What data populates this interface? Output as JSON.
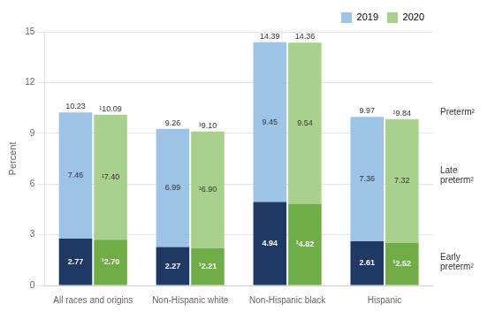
{
  "chart_data": {
    "type": "bar",
    "stacked": true,
    "categories": [
      "All races and origins",
      "Non-Hispanic white",
      "Non-Hispanic black",
      "Hispanic"
    ],
    "ylabel": "Percent",
    "ylim": [
      0,
      15
    ],
    "yticks": [
      0,
      3,
      6,
      9,
      12,
      15
    ],
    "grid": true,
    "legend": "upper right",
    "data_labels": true,
    "series": [
      {
        "name": "2019",
        "color": "#9dc3e6",
        "annotation": "Preterm²",
        "totals": [
          10.23,
          9.26,
          14.39,
          9.97
        ],
        "total_labels": [
          "10.23",
          "9.26",
          "14.39",
          "9.97"
        ],
        "segments": [
          {
            "color": "#1f3864",
            "annotation": "Early\npreterm²",
            "values": [
              2.77,
              2.27,
              4.94,
              2.61
            ],
            "value_labels": [
              "2.77",
              "2.27",
              "4.94",
              "2.61"
            ]
          },
          {
            "color": "#9dc3e6",
            "annotation": "Late\npreterm²",
            "values": [
              7.46,
              6.99,
              9.45,
              7.36
            ],
            "value_labels": [
              "7.46",
              "6.99",
              "9.45",
              "7.36"
            ]
          }
        ]
      },
      {
        "name": "2020",
        "color": "#a9d18e",
        "totals": [
          10.09,
          9.1,
          14.36,
          9.84
        ],
        "total_labels": [
          "¹10.09",
          "¹9.10",
          "14.36",
          "¹9.84"
        ],
        "segments": [
          {
            "color": "#70ad47",
            "values": [
              2.7,
              2.21,
              4.82,
              2.52
            ],
            "value_labels": [
              "¹2.70",
              "¹2.21",
              "¹4.82",
              "¹2.52"
            ]
          },
          {
            "color": "#a9d18e",
            "values": [
              7.4,
              6.9,
              9.54,
              7.32
            ],
            "value_labels": [
              "¹7.40",
              "¹6.90",
              "9.54",
              "7.32"
            ]
          }
        ]
      }
    ]
  }
}
